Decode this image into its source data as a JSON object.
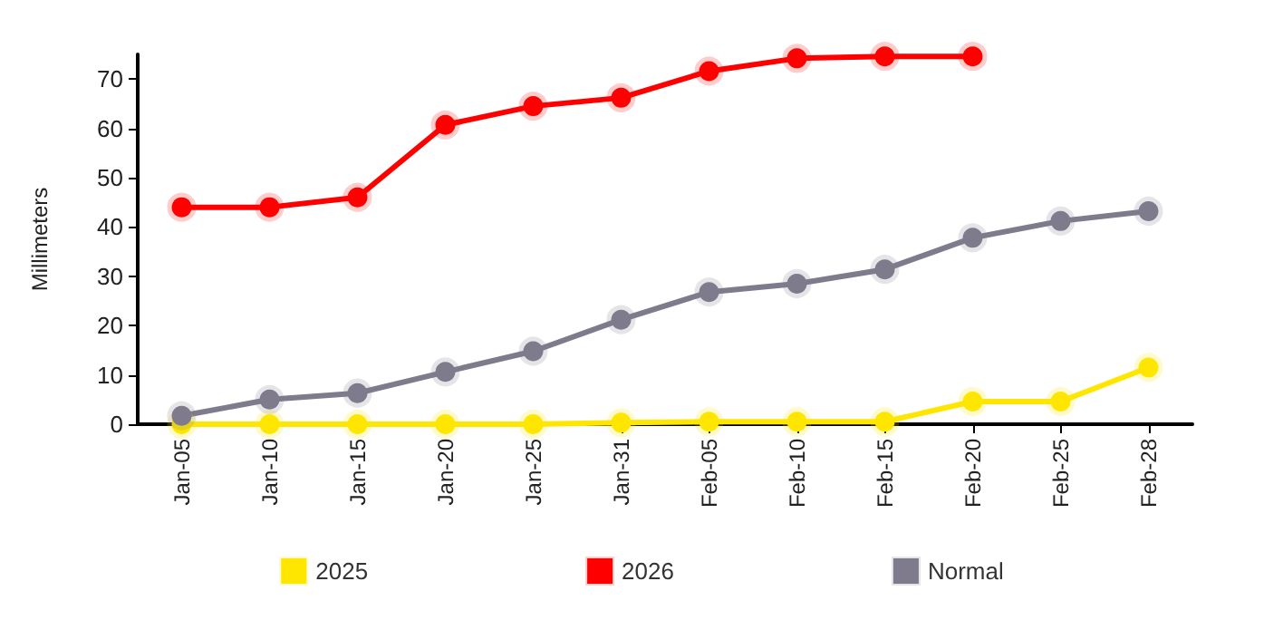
{
  "chart_data": {
    "type": "line",
    "ylabel": "Millimeters",
    "categories": [
      "Jan-05",
      "Jan-10",
      "Jan-15",
      "Jan-20",
      "Jan-25",
      "Jan-31",
      "Feb-05",
      "Feb-10",
      "Feb-15",
      "Feb-20",
      "Feb-25",
      "Feb-28"
    ],
    "series": [
      {
        "name": "2025",
        "color": "#ffe600",
        "values": [
          0,
          0,
          0,
          0,
          0,
          0.3,
          0.5,
          0.5,
          0.5,
          4.6,
          4.6,
          11.5
        ]
      },
      {
        "name": "2026",
        "color": "#ff0000",
        "values": [
          44,
          44,
          46,
          60.7,
          64.5,
          66.2,
          71.6,
          74.2,
          74.6,
          74.6,
          null,
          null
        ]
      },
      {
        "name": "Normal",
        "color": "#7f7b8c",
        "values": [
          1.7,
          5,
          6.3,
          10.6,
          14.8,
          21.2,
          26.8,
          28.5,
          31.4,
          37.8,
          41.2,
          43.2
        ]
      }
    ],
    "ylim": [
      0,
      75
    ],
    "yticks": [
      0,
      10,
      20,
      30,
      40,
      50,
      60,
      70
    ],
    "grid": false,
    "legend": "bottom",
    "marker": "circle",
    "line_style": "solid"
  }
}
